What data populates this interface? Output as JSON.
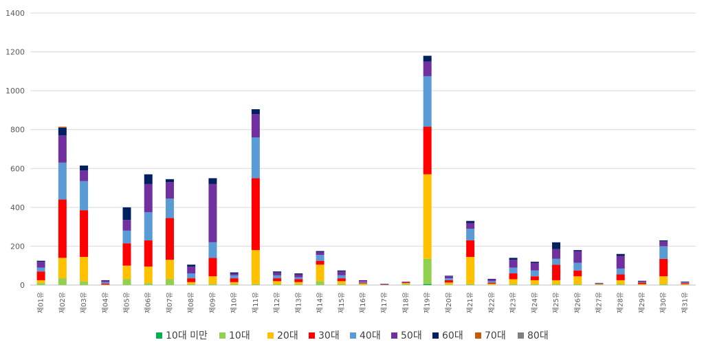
{
  "chart_data": {
    "type": "bar",
    "stacked": true,
    "ylim": [
      0,
      1400
    ],
    "yticks": [
      0,
      200,
      400,
      600,
      800,
      1000,
      1200,
      1400
    ],
    "grid": true,
    "legend_position": "bottom",
    "categories": [
      "제01유",
      "제02유",
      "제03유",
      "제04유",
      "제05유",
      "제06유",
      "제07유",
      "제08유",
      "제09유",
      "제10유",
      "제11유",
      "제12유",
      "제13유",
      "제14유",
      "제15유",
      "제16유",
      "제17유",
      "제18유",
      "제19유",
      "제20유",
      "제21유",
      "제22유",
      "제23유",
      "제24유",
      "제25유",
      "제26유",
      "제27유",
      "제28유",
      "제29유",
      "제30유",
      "제31유"
    ],
    "series": [
      {
        "name": "10대 미만",
        "color": "#00b050",
        "values": [
          0,
          0,
          0,
          0,
          0,
          0,
          0,
          0,
          0,
          0,
          0,
          0,
          0,
          0,
          0,
          0,
          0,
          0,
          5,
          0,
          0,
          0,
          0,
          0,
          0,
          0,
          0,
          0,
          0,
          0,
          0
        ]
      },
      {
        "name": "10대",
        "color": "#92d050",
        "values": [
          10,
          35,
          20,
          0,
          30,
          10,
          30,
          5,
          5,
          5,
          5,
          5,
          5,
          20,
          5,
          3,
          0,
          5,
          130,
          3,
          5,
          2,
          5,
          5,
          5,
          5,
          2,
          5,
          2,
          5,
          2
        ]
      },
      {
        "name": "20대",
        "color": "#ffc000",
        "values": [
          15,
          105,
          125,
          2,
          70,
          85,
          100,
          10,
          40,
          10,
          175,
          15,
          10,
          85,
          15,
          5,
          1,
          5,
          435,
          10,
          140,
          5,
          25,
          20,
          20,
          40,
          2,
          20,
          3,
          40,
          3
        ]
      },
      {
        "name": "30대",
        "color": "#ff0000",
        "values": [
          45,
          300,
          240,
          5,
          115,
          135,
          215,
          20,
          95,
          20,
          370,
          15,
          15,
          20,
          15,
          5,
          1,
          4,
          245,
          12,
          85,
          5,
          30,
          20,
          80,
          30,
          2,
          30,
          8,
          90,
          5
        ]
      },
      {
        "name": "40대",
        "color": "#5b9bd5",
        "values": [
          20,
          190,
          150,
          8,
          65,
          145,
          100,
          25,
          80,
          15,
          210,
          15,
          10,
          30,
          15,
          5,
          1,
          2,
          260,
          10,
          60,
          8,
          30,
          30,
          30,
          40,
          2,
          30,
          3,
          65,
          3
        ]
      },
      {
        "name": "50대",
        "color": "#7030a0",
        "values": [
          30,
          140,
          55,
          8,
          55,
          145,
          85,
          35,
          300,
          10,
          120,
          15,
          15,
          15,
          20,
          5,
          2,
          2,
          75,
          10,
          30,
          10,
          40,
          40,
          50,
          60,
          2,
          65,
          5,
          25,
          4
        ]
      },
      {
        "name": "60대",
        "color": "#002060",
        "values": [
          5,
          40,
          25,
          2,
          65,
          50,
          15,
          10,
          30,
          5,
          25,
          5,
          5,
          5,
          5,
          2,
          1,
          0,
          30,
          3,
          10,
          2,
          10,
          5,
          35,
          5,
          1,
          10,
          1,
          5,
          1
        ]
      },
      {
        "name": "70대",
        "color": "#c55a11",
        "values": [
          0,
          5,
          0,
          0,
          0,
          0,
          0,
          0,
          0,
          0,
          0,
          0,
          0,
          0,
          0,
          0,
          0,
          0,
          0,
          0,
          0,
          0,
          0,
          0,
          0,
          0,
          0,
          0,
          0,
          0,
          0
        ]
      },
      {
        "name": "80대",
        "color": "#7f7f7f",
        "values": [
          0,
          0,
          0,
          0,
          0,
          0,
          0,
          0,
          0,
          0,
          0,
          0,
          0,
          0,
          0,
          0,
          0,
          0,
          0,
          0,
          0,
          0,
          0,
          0,
          0,
          0,
          0,
          0,
          0,
          0,
          0
        ]
      }
    ]
  }
}
